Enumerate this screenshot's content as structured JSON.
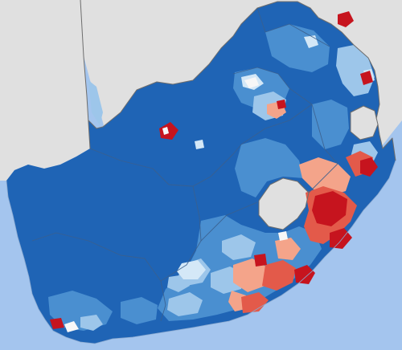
{
  "map": {
    "colors": {
      "sea": "#a4c5ee",
      "neighbour_land": "#e0e0e0",
      "border_line": "#6d6d6d",
      "province_line": "#3b5f8d",
      "dark_blue": "#1f64b5",
      "mid_blue": "#4a8fd0",
      "light_blue": "#9dc6ea",
      "pale_blue": "#d4e8f7",
      "light_red": "#f4a48a",
      "mid_red": "#e35a4a",
      "dark_red": "#c6141e",
      "white": "#f7f7f7"
    }
  }
}
